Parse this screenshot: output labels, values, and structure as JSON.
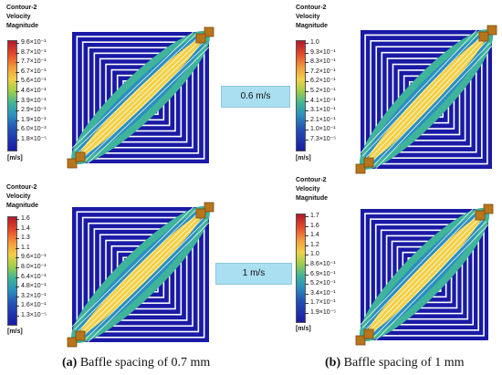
{
  "panels": [
    {
      "legend": {
        "title_lines": [
          "Contour-2",
          "Velocity",
          "Magnitude"
        ],
        "unit": "[m/s]",
        "ticks": [
          "9.6×10⁻¹",
          "8.7×10⁻¹",
          "7.7×10⁻¹",
          "6.7×10⁻¹",
          "5.6×10⁻¹",
          "4.6×10⁻¹",
          "3.9×10⁻¹",
          "2.9×10⁻¹",
          "1.9×10⁻¹",
          "6.0×10⁻³",
          "1.8×10⁻⁵"
        ]
      }
    },
    {
      "legend": {
        "title_lines": [
          "Contour-2",
          "Velocity",
          "Magnitude"
        ],
        "unit": "[m/s]",
        "ticks": [
          "1.0",
          "9.3×10⁻¹",
          "8.3×10⁻¹",
          "7.2×10⁻¹",
          "6.2×10⁻¹",
          "5.2×10⁻¹",
          "4.1×10⁻¹",
          "3.1×10⁻¹",
          "2.1×10⁻¹",
          "1.0×10⁻¹",
          "7.3×10⁻⁵"
        ]
      }
    },
    {
      "legend": {
        "title_lines": [
          "Contour-2",
          "Velocity",
          "Magnitude"
        ],
        "unit": "[m/s]",
        "ticks": [
          "1.6",
          "1.4",
          "1.3",
          "1.1",
          "9.6×10⁻¹",
          "8.0×10⁻¹",
          "6.4×10⁻¹",
          "4.8×10⁻¹",
          "3.2×10⁻¹",
          "1.6×10⁻¹",
          "1.3×10⁻⁵"
        ]
      }
    },
    {
      "legend": {
        "title_lines": [
          "Contour-2",
          "Velocity",
          "Magnitude"
        ],
        "unit": "[m/s]",
        "ticks": [
          "1.7",
          "1.6",
          "1.4",
          "1.2",
          "1.0",
          "8.6×10⁻¹",
          "6.9×10⁻¹",
          "5.2×10⁻¹",
          "3.4×10⁻¹",
          "1.7×10⁻¹",
          "1.9×10⁻⁵"
        ]
      }
    }
  ],
  "velocity_labels": [
    "0.6 m/s",
    "1 m/s"
  ],
  "captions": [
    {
      "letter": "(a)",
      "text": " Baffle spacing of 0.7 mm"
    },
    {
      "letter": "(b)",
      "text": " Baffle spacing of 1 mm"
    }
  ],
  "colors": {
    "background_flow": "#1a1aa6",
    "baffle": "#ffffff",
    "jet_core": "#f1d046",
    "jet_edge": "#3fb49a"
  }
}
